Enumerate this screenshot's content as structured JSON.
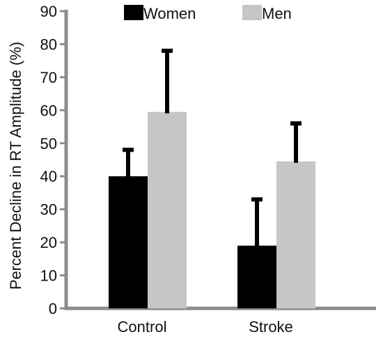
{
  "chart_data": {
    "type": "bar",
    "title": "",
    "xlabel": "",
    "ylabel": "Percent Decline in RT Amplitude (%)",
    "ylim": [
      0,
      90
    ],
    "yticks": [
      0,
      10,
      20,
      30,
      40,
      50,
      60,
      70,
      80,
      90
    ],
    "categories": [
      "Control",
      "Stroke"
    ],
    "series": [
      {
        "name": "Women",
        "values": [
          40,
          19
        ],
        "error_upper": [
          48,
          33
        ],
        "color": "#000000"
      },
      {
        "name": "Men",
        "values": [
          59.5,
          44.5
        ],
        "error_upper": [
          78,
          56
        ],
        "color": "#c6c6c6"
      }
    ],
    "error_bars": "upper only",
    "legend_position": "top",
    "grid": false,
    "axis_color": "#8c8c8c"
  }
}
